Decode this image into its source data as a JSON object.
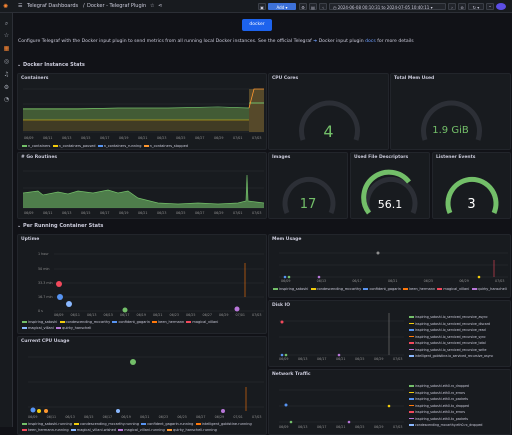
{
  "topbar": {
    "menu_icon": "hamburger-icon",
    "breadcrumb_parent": "Telegraf Dashboards",
    "separator": "/",
    "breadcrumb_current": "Docker - Telegraf Plugin",
    "add_label": "Add",
    "time_range": "2024-06-08 00:10:31 to 2024-07-05 10:40:11",
    "star_icon": "star-icon",
    "share_icon": "share-icon"
  },
  "description": {
    "logo_text": "docker",
    "text": "Configure Telegraf with the Docker input plugin to send metrics from all running local Docker instances. See the official Telegraf",
    "link_icon": "telegraf-icon",
    "text_suffix": "Docker input plugin",
    "link": "docs",
    "text_end": "for more details"
  },
  "rows": {
    "instance": "Docker Instance Stats",
    "container": "Per Running Container Stats"
  },
  "panels": {
    "containers": {
      "title": "Containers",
      "legend": [
        "n_containers",
        "n_containers_paused",
        "n_containers_running",
        "n_containers_stopped"
      ],
      "legend_colors": [
        "#73bf69",
        "#f2cc0c",
        "#5794f2",
        "#ff9830"
      ]
    },
    "cpu_cores": {
      "title": "CPU Cores",
      "value": "4",
      "color": "#73bf69",
      "fill": 0.0
    },
    "total_mem": {
      "title": "Total Mem Used",
      "value": "1.9 GiB",
      "color": "#73bf69",
      "fill": 0.0
    },
    "go_routines": {
      "title": "# Go Routines"
    },
    "images": {
      "title": "Images",
      "value": "17",
      "color": "#73bf69",
      "fill": 0.0
    },
    "file_desc": {
      "title": "Used File Descriptors",
      "value": "56.1",
      "color": "#73bf69",
      "fill": 0.8
    },
    "listener": {
      "title": "Listener Events",
      "value": "3",
      "color": "#73bf69",
      "fill": 0.95
    },
    "uptime": {
      "title": "Uptime",
      "yticks": [
        "1 hour",
        "50 min",
        "33.3 min",
        "16.7 min",
        "0 s"
      ],
      "legend": [
        "inspiring_satoshi",
        "condescending_mccarthy",
        "confident_gagarin",
        "keen_hermann",
        "magical_villani",
        "magical_villani",
        "quirky_hanscheli"
      ]
    },
    "cpu_usage": {
      "title": "Current CPU Usage",
      "legend": [
        "inspiring_satoshi.running",
        "condescending_mccarthy.running",
        "confident_gagarin.running",
        "intelligent_goldstine.running",
        "keen_hermann.running",
        "magical_villani.wished",
        "magical_villani.running",
        "quirky_hanscheli.running"
      ]
    },
    "mem_usage": {
      "title": "Mem Usage",
      "legend": [
        "inspiring_satoshi",
        "condescending_mccarthy",
        "confident_gagarin",
        "keen_hermann",
        "magical_villani",
        "quirky_hanscheli"
      ]
    },
    "disk_io": {
      "title": "Disk IO",
      "legend": [
        "inspiring_satoshi.io_serviced_recursive_async",
        "inspiring_satoshi.io_serviced_recursive_discard",
        "inspiring_satoshi.io_serviced_recursive_read",
        "inspiring_satoshi.io_serviced_recursive_sync",
        "inspiring_satoshi.io_serviced_recursive_total",
        "inspiring_satoshi.io_serviced_recursive_write",
        "intelligent_goldstine.io_serviced_recursive_async"
      ]
    },
    "network": {
      "title": "Network Traffic",
      "legend": [
        "inspiring_satoshi.eth0.rx_dropped",
        "inspiring_satoshi.eth0.rx_errors",
        "inspiring_satoshi.eth0.rx_packets",
        "inspiring_satoshi.eth0.tx_dropped",
        "inspiring_satoshi.eth0.tx_errors",
        "inspiring_satoshi.eth0.tx_packets",
        "condescending_mccarthy.eth0.rx_dropped"
      ]
    }
  },
  "xticks": [
    "06/09",
    "06/11",
    "06/13",
    "06/15",
    "06/17",
    "06/19",
    "06/21",
    "06/23",
    "06/25",
    "06/27",
    "06/29",
    "07/01",
    "07/03"
  ],
  "xticks_short": [
    "06/09",
    "06/13",
    "06/17",
    "06/21",
    "06/25",
    "06/29",
    "07/03"
  ]
}
